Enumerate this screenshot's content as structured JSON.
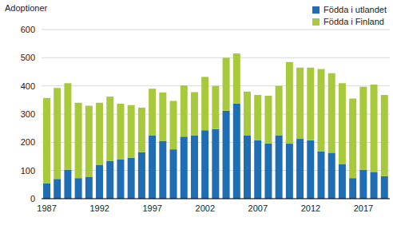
{
  "chart_data": {
    "type": "bar",
    "stacked": true,
    "y_label": "Adoptioner",
    "categories": [
      "1987",
      null,
      null,
      null,
      null,
      "1992",
      null,
      null,
      null,
      null,
      "1997",
      null,
      null,
      null,
      null,
      "2002",
      null,
      null,
      null,
      null,
      "2007",
      null,
      null,
      null,
      null,
      "2012",
      null,
      null,
      null,
      null,
      "2017",
      null,
      null
    ],
    "series": [
      {
        "name": "Födda i utlandet",
        "color": "#1f6db3",
        "values": [
          55,
          70,
          103,
          73,
          78,
          120,
          133,
          140,
          145,
          165,
          225,
          205,
          175,
          220,
          225,
          243,
          247,
          312,
          337,
          225,
          207,
          196,
          225,
          195,
          212,
          207,
          168,
          163,
          122,
          73,
          103,
          95,
          80
        ]
      },
      {
        "name": "Födda i Finland",
        "color": "#a8c93c",
        "values": [
          302,
          323,
          307,
          267,
          252,
          220,
          229,
          197,
          187,
          158,
          165,
          172,
          172,
          182,
          153,
          189,
          153,
          188,
          178,
          155,
          161,
          169,
          175,
          290,
          253,
          258,
          292,
          282,
          288,
          282,
          294,
          310,
          288
        ]
      }
    ],
    "ylim": [
      0,
      600
    ],
    "yticks": [
      0,
      100,
      200,
      300,
      400,
      500,
      600
    ],
    "grid": true,
    "legend": "top-right"
  }
}
